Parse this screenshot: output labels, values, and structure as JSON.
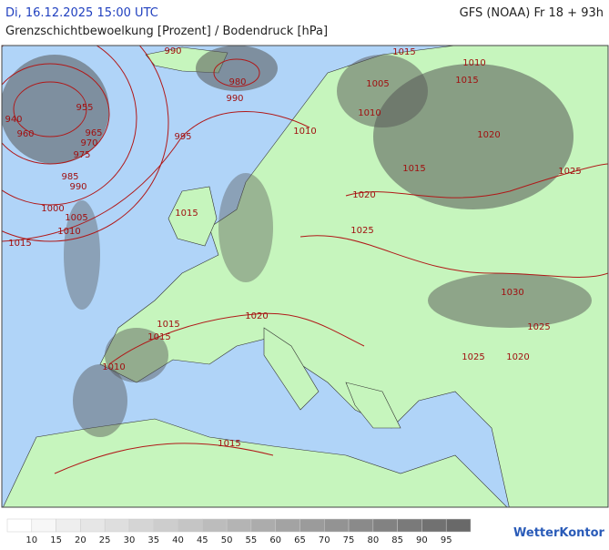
{
  "header": {
    "datetime": "Di, 16.12.2025 15:00 UTC",
    "model": "GFS (NOAA) Fr 18 + 93h",
    "subtitle": "Grenzschichtbewoelkung [Prozent] / Bodendruck [hPa]"
  },
  "isobar_labels": [
    990,
    980,
    990,
    995,
    955,
    940,
    960,
    965,
    970,
    975,
    985,
    990,
    1000,
    1005,
    1010,
    1015,
    1015,
    1010,
    1015,
    1005,
    1010,
    1010,
    1020,
    1015,
    1025,
    1020,
    1015,
    1025,
    1030,
    1020,
    1015,
    1015,
    1025,
    1020,
    1025,
    1010,
    1015
  ],
  "legend": {
    "values": [
      10,
      15,
      20,
      25,
      30,
      35,
      40,
      45,
      50,
      55,
      60,
      65,
      70,
      75,
      80,
      85,
      90,
      95
    ]
  },
  "logo": "WetterKontor"
}
